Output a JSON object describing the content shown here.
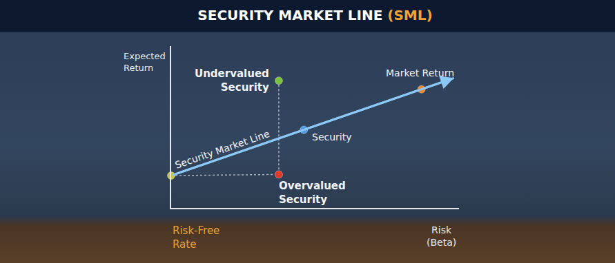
{
  "chart_data": {
    "type": "scatter",
    "title": "SECURITY MARKET LINE (SML)",
    "x_label": "Risk (Beta)",
    "y_label": "Expected Return",
    "xlim": [
      0,
      1.15
    ],
    "ylim": [
      0,
      15
    ],
    "xticks": [],
    "yticks": [],
    "tick_labels": false,
    "grid": false,
    "series": [
      {
        "name": "Security Market Line",
        "type": "line",
        "color": "#8cc8f5",
        "x": [
          0,
          1.13
        ],
        "values": [
          3,
          12.04
        ]
      },
      {
        "name": "Risk-Free Rate",
        "type": "scatter",
        "color": "#c9c83a",
        "x": [
          0
        ],
        "values": [
          3
        ]
      },
      {
        "name": "Undervalued Security",
        "type": "scatter",
        "color": "#7bbf3f",
        "x": [
          0.43
        ],
        "values": [
          11.8
        ]
      },
      {
        "name": "Security",
        "type": "scatter",
        "color": "#4d9be6",
        "x": [
          0.53
        ],
        "values": [
          7.24
        ]
      },
      {
        "name": "Market Return",
        "type": "scatter",
        "color": "#e98a2b",
        "x": [
          1.0
        ],
        "values": [
          11
        ]
      },
      {
        "name": "Overvalued Security",
        "type": "scatter",
        "color": "#e0392b",
        "x": [
          0.43
        ],
        "values": [
          3.1
        ]
      }
    ]
  }
}
